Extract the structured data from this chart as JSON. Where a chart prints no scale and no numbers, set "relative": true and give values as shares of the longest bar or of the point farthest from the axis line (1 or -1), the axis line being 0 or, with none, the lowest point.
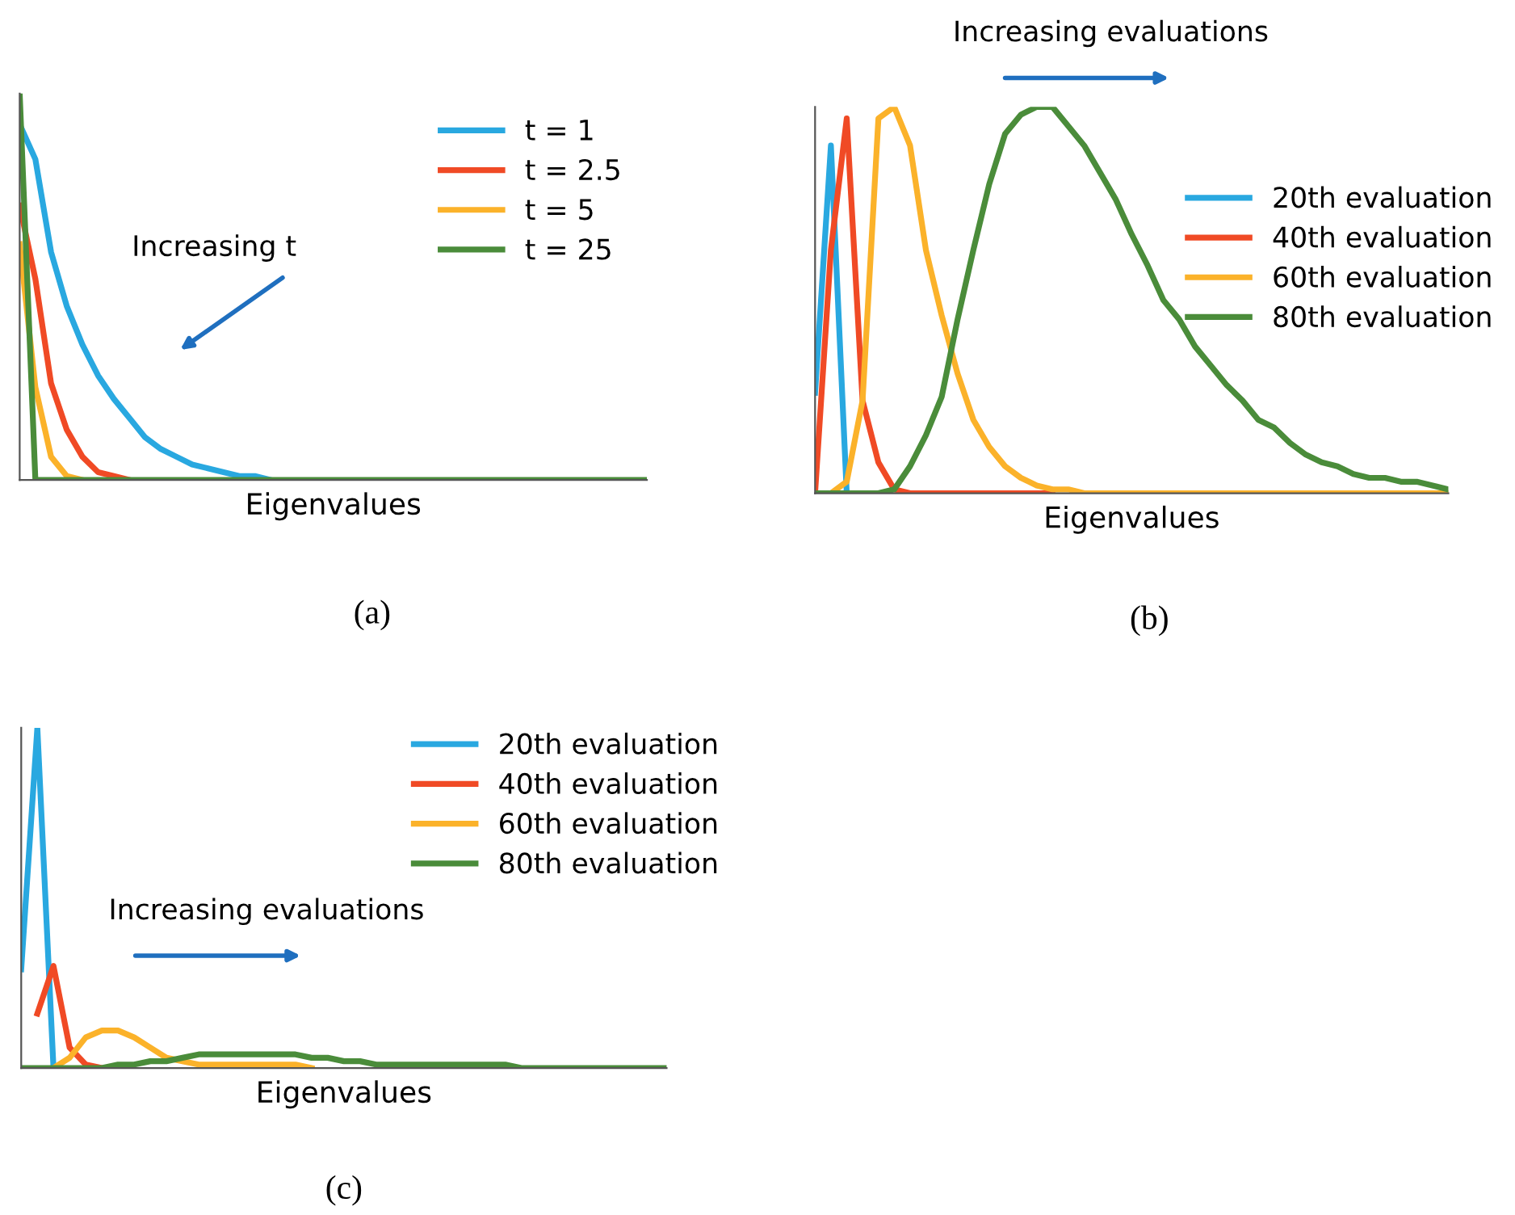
{
  "chart_data": [
    {
      "type": "line",
      "relative": true,
      "xlabel": "Eigenvalues",
      "legend": "top right",
      "grid": false,
      "marker": "none",
      "line_style": "solid",
      "annotations": [
        "Increasing t",
        "(a)"
      ],
      "categories": [
        null,
        null,
        null,
        null,
        null,
        null,
        null,
        null,
        null,
        null,
        null,
        null,
        null,
        null,
        null,
        null,
        null,
        null,
        null,
        null,
        null,
        null,
        null,
        null,
        null,
        null,
        null,
        null,
        null,
        null,
        null,
        null,
        null,
        null,
        null,
        null,
        null,
        null,
        null,
        null,
        null
      ],
      "series": [
        {
          "name": "t = 1",
          "color": "#29a8e0",
          "values": [
            0.92,
            0.83,
            0.59,
            0.45,
            0.35,
            0.27,
            0.21,
            0.16,
            0.11,
            0.08,
            0.06,
            0.04,
            0.03,
            0.02,
            0.01,
            0.01,
            0,
            null,
            null,
            null,
            null,
            null,
            null,
            null,
            null,
            null,
            null,
            null,
            null,
            null,
            null,
            null,
            null,
            null,
            null,
            null,
            null,
            null,
            null,
            null,
            null
          ]
        },
        {
          "name": "t = 2.5",
          "color": "#f04a25",
          "values": [
            0.71,
            0.52,
            0.25,
            0.13,
            0.06,
            0.02,
            0.01,
            0,
            null,
            null,
            null,
            null,
            null,
            null,
            null,
            null,
            null,
            null,
            null,
            null,
            null,
            null,
            null,
            null,
            null,
            null,
            null,
            null,
            null,
            null,
            null,
            null,
            null,
            null,
            null,
            null,
            null,
            null,
            null,
            null,
            null
          ]
        },
        {
          "name": "t = 5",
          "color": "#fbb22a",
          "values": [
            0.61,
            0.24,
            0.06,
            0.01,
            0,
            null,
            null,
            null,
            null,
            null,
            null,
            null,
            null,
            null,
            null,
            null,
            null,
            null,
            null,
            null,
            null,
            null,
            null,
            null,
            null,
            null,
            null,
            null,
            null,
            null,
            null,
            null,
            null,
            null,
            null,
            null,
            null,
            null,
            null,
            null,
            null
          ]
        },
        {
          "name": "t = 25",
          "color": "#4a8c3a",
          "values": [
            1.0,
            0,
            0,
            0,
            0,
            0,
            0,
            0,
            0,
            0,
            0,
            0,
            0,
            0,
            0,
            0,
            0,
            0,
            0,
            0,
            0,
            0,
            0,
            0,
            0,
            0,
            0,
            0,
            0,
            0,
            0,
            0,
            0,
            0,
            0,
            0,
            0,
            0,
            0,
            0,
            0
          ]
        }
      ]
    },
    {
      "type": "line",
      "relative": true,
      "xlabel": "Eigenvalues",
      "legend": "top right",
      "grid": false,
      "marker": "none",
      "line_style": "solid",
      "annotations": [
        "Increasing evaluations",
        "(b)"
      ],
      "categories": [
        null,
        null,
        null,
        null,
        null,
        null,
        null,
        null,
        null,
        null,
        null,
        null,
        null,
        null,
        null,
        null,
        null,
        null,
        null,
        null,
        null,
        null,
        null,
        null,
        null,
        null,
        null,
        null,
        null,
        null,
        null,
        null,
        null,
        null,
        null,
        null,
        null,
        null,
        null,
        null,
        null
      ],
      "series": [
        {
          "name": "20th evaluation",
          "color": "#29a8e0",
          "values": [
            0.26,
            0.9,
            0,
            0,
            null,
            null,
            null,
            null,
            null,
            null,
            null,
            null,
            null,
            null,
            null,
            null,
            null,
            null,
            null,
            null,
            null,
            null,
            null,
            null,
            null,
            null,
            null,
            null,
            null,
            null,
            null,
            null,
            null,
            null,
            null,
            null,
            null,
            null,
            null,
            null,
            null
          ]
        },
        {
          "name": "40th evaluation",
          "color": "#f04a25",
          "values": [
            0,
            0.63,
            0.97,
            0.24,
            0.08,
            0.01,
            0,
            0,
            0,
            0,
            0,
            0,
            0,
            0,
            0,
            0,
            null,
            null,
            null,
            null,
            null,
            null,
            null,
            null,
            null,
            null,
            null,
            null,
            null,
            null,
            null,
            null,
            null,
            null,
            null,
            null,
            null,
            null,
            null,
            null,
            null
          ]
        },
        {
          "name": "60th evaluation",
          "color": "#fbb22a",
          "values": [
            0,
            0,
            0.03,
            0.24,
            0.97,
            1.0,
            0.9,
            0.63,
            0.46,
            0.31,
            0.19,
            0.12,
            0.07,
            0.04,
            0.02,
            0.01,
            0.01,
            0,
            0,
            0,
            0,
            0,
            0,
            0,
            0,
            0,
            0,
            0,
            0,
            0,
            0,
            0,
            0,
            0,
            0,
            0,
            0,
            0,
            0,
            0,
            0
          ]
        },
        {
          "name": "80th evaluation",
          "color": "#4a8c3a",
          "values": [
            0,
            0,
            0,
            0,
            0,
            0.01,
            0.07,
            0.15,
            0.25,
            0.45,
            0.63,
            0.8,
            0.93,
            0.98,
            1.0,
            1.0,
            0.95,
            0.9,
            0.83,
            0.76,
            0.67,
            0.59,
            0.5,
            0.45,
            0.38,
            0.33,
            0.28,
            0.24,
            0.19,
            0.17,
            0.13,
            0.1,
            0.08,
            0.07,
            0.05,
            0.04,
            0.04,
            0.03,
            0.03,
            0.02,
            0.01
          ]
        }
      ]
    },
    {
      "type": "line",
      "relative": true,
      "xlabel": "Eigenvalues",
      "legend": "top right",
      "grid": false,
      "marker": "none",
      "line_style": "solid",
      "annotations": [
        "Increasing evaluations",
        "(c)"
      ],
      "categories": [
        null,
        null,
        null,
        null,
        null,
        null,
        null,
        null,
        null,
        null,
        null,
        null,
        null,
        null,
        null,
        null,
        null,
        null,
        null,
        null,
        null,
        null,
        null,
        null,
        null,
        null,
        null,
        null,
        null,
        null,
        null,
        null,
        null,
        null,
        null,
        null,
        null,
        null,
        null,
        null,
        null
      ],
      "series": [
        {
          "name": "20th evaluation",
          "color": "#29a8e0",
          "values": [
            0.29,
            1.0,
            0,
            null,
            null,
            null,
            null,
            null,
            null,
            null,
            null,
            null,
            null,
            null,
            null,
            null,
            null,
            null,
            null,
            null,
            null,
            null,
            null,
            null,
            null,
            null,
            null,
            null,
            null,
            null,
            null,
            null,
            null,
            null,
            null,
            null,
            null,
            null,
            null,
            null,
            null
          ]
        },
        {
          "name": "40th evaluation",
          "color": "#f04a25",
          "values": [
            null,
            0.16,
            0.3,
            0.06,
            0.01,
            0,
            null,
            null,
            null,
            null,
            null,
            null,
            null,
            null,
            null,
            null,
            null,
            null,
            null,
            null,
            null,
            null,
            null,
            null,
            null,
            null,
            null,
            null,
            null,
            null,
            null,
            null,
            null,
            null,
            null,
            null,
            null,
            null,
            null,
            null,
            null
          ]
        },
        {
          "name": "60th evaluation",
          "color": "#fbb22a",
          "values": [
            null,
            null,
            0,
            0.03,
            0.09,
            0.11,
            0.11,
            0.09,
            0.06,
            0.03,
            0.02,
            0.01,
            0.01,
            0.01,
            0.01,
            0.01,
            0.01,
            0.01,
            0,
            null,
            null,
            null,
            null,
            null,
            null,
            null,
            null,
            null,
            null,
            null,
            null,
            null,
            null,
            null,
            null,
            null,
            null,
            null,
            null,
            null,
            null
          ]
        },
        {
          "name": "80th evaluation",
          "color": "#4a8c3a",
          "values": [
            0,
            0,
            0,
            0,
            0,
            0,
            0.01,
            0.01,
            0.02,
            0.02,
            0.03,
            0.04,
            0.04,
            0.04,
            0.04,
            0.04,
            0.04,
            0.04,
            0.03,
            0.03,
            0.02,
            0.02,
            0.01,
            0.01,
            0.01,
            0.01,
            0.01,
            0.01,
            0.01,
            0.01,
            0.01,
            0,
            0,
            0,
            0,
            0,
            0,
            0,
            0,
            0,
            0
          ]
        }
      ]
    }
  ]
}
